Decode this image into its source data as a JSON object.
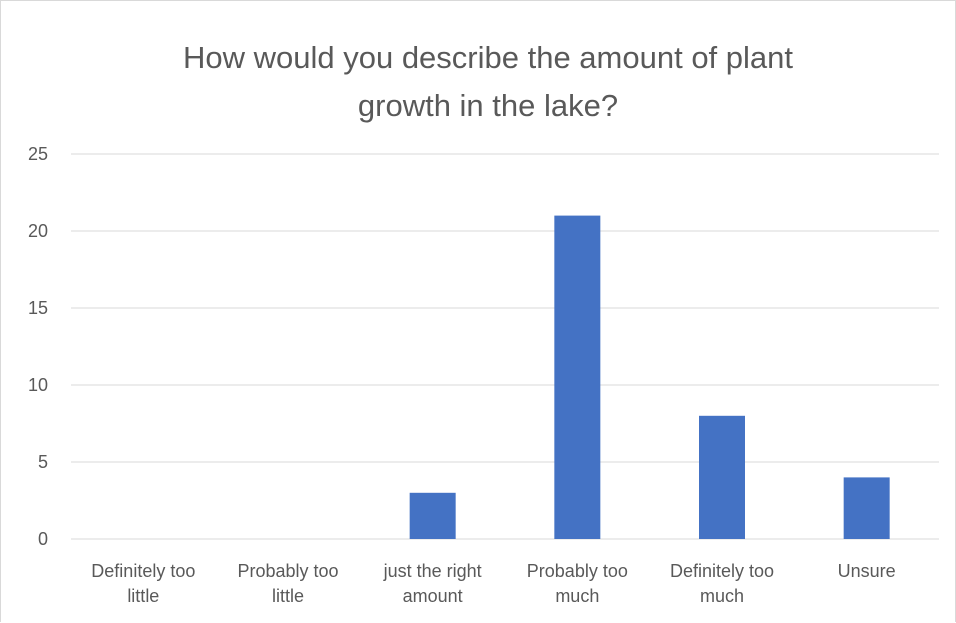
{
  "chart_data": {
    "type": "bar",
    "title_lines": [
      "How would you describe the amount of plant",
      "growth in the lake?"
    ],
    "categories": [
      [
        "Definitely too",
        "little"
      ],
      [
        "Probably too",
        "little"
      ],
      [
        "just the right",
        "amount"
      ],
      [
        "Probably too",
        "much"
      ],
      [
        "Definitely too",
        "much"
      ],
      [
        "Unsure"
      ]
    ],
    "values": [
      0,
      0,
      3,
      21,
      8,
      4
    ],
    "ylim": [
      0,
      25
    ],
    "yticks": [
      "0",
      "5",
      "10",
      "15",
      "20",
      "25"
    ],
    "grid": true,
    "legend": "none",
    "bar_color": "#4472C4"
  }
}
